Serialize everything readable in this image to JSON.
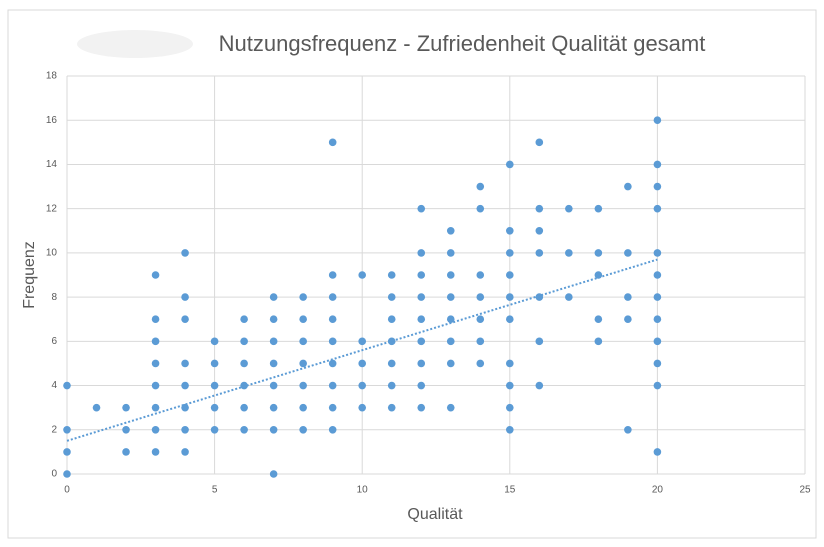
{
  "chart_data": {
    "type": "scatter",
    "title": "Nutzungsfrequenz - Zufriedenheit Qualität gesamt",
    "x_label": "Qualität",
    "y_label": "Frequenz",
    "color": "#5b9bd5",
    "grid": true,
    "xlim": [
      0,
      25
    ],
    "xticks": [
      0,
      5,
      10,
      15,
      20,
      25
    ],
    "ylim": [
      0,
      18
    ],
    "yticks": [
      0,
      2,
      4,
      6,
      8,
      10,
      12,
      14,
      16,
      18
    ],
    "x": [
      0,
      0,
      0,
      0,
      1,
      2,
      2,
      2,
      3,
      3,
      3,
      3,
      3,
      3,
      3,
      3,
      4,
      4,
      4,
      4,
      4,
      4,
      4,
      4,
      5,
      5,
      5,
      5,
      5,
      6,
      6,
      6,
      6,
      6,
      6,
      7,
      7,
      7,
      7,
      7,
      7,
      7,
      7,
      8,
      8,
      8,
      8,
      8,
      8,
      8,
      9,
      9,
      9,
      9,
      9,
      9,
      9,
      9,
      9,
      10,
      10,
      10,
      10,
      10,
      11,
      11,
      11,
      11,
      11,
      11,
      11,
      12,
      12,
      12,
      12,
      12,
      12,
      12,
      12,
      12,
      13,
      13,
      13,
      13,
      13,
      13,
      13,
      13,
      14,
      14,
      14,
      14,
      14,
      14,
      14,
      15,
      15,
      15,
      15,
      15,
      15,
      15,
      15,
      15,
      15,
      16,
      16,
      16,
      16,
      16,
      16,
      16,
      17,
      17,
      17,
      18,
      18,
      18,
      18,
      18,
      19,
      19,
      19,
      19,
      19,
      20,
      20,
      20,
      20,
      20,
      20,
      20,
      20,
      20,
      20,
      20,
      20
    ],
    "values": [
      4,
      2,
      1,
      0,
      3,
      3,
      2,
      1,
      9,
      7,
      6,
      5,
      4,
      3,
      2,
      1,
      10,
      8,
      7,
      5,
      4,
      3,
      2,
      1,
      6,
      5,
      4,
      3,
      2,
      7,
      6,
      5,
      4,
      3,
      2,
      8,
      7,
      6,
      5,
      4,
      3,
      2,
      0,
      8,
      7,
      6,
      5,
      4,
      3,
      2,
      15,
      9,
      8,
      7,
      6,
      5,
      4,
      3,
      2,
      9,
      6,
      5,
      4,
      3,
      9,
      8,
      7,
      6,
      5,
      4,
      3,
      12,
      10,
      9,
      8,
      7,
      6,
      5,
      4,
      3,
      11,
      10,
      9,
      8,
      7,
      6,
      5,
      3,
      13,
      12,
      9,
      8,
      7,
      6,
      5,
      14,
      11,
      10,
      9,
      8,
      7,
      5,
      4,
      3,
      2,
      15,
      12,
      11,
      10,
      8,
      6,
      4,
      12,
      10,
      8,
      12,
      10,
      9,
      7,
      6,
      13,
      10,
      8,
      7,
      2,
      16,
      14,
      13,
      12,
      10,
      9,
      8,
      7,
      6,
      5,
      4,
      1
    ],
    "trendline": {
      "x": [
        0,
        20
      ],
      "values": [
        1.5,
        9.7
      ]
    }
  }
}
